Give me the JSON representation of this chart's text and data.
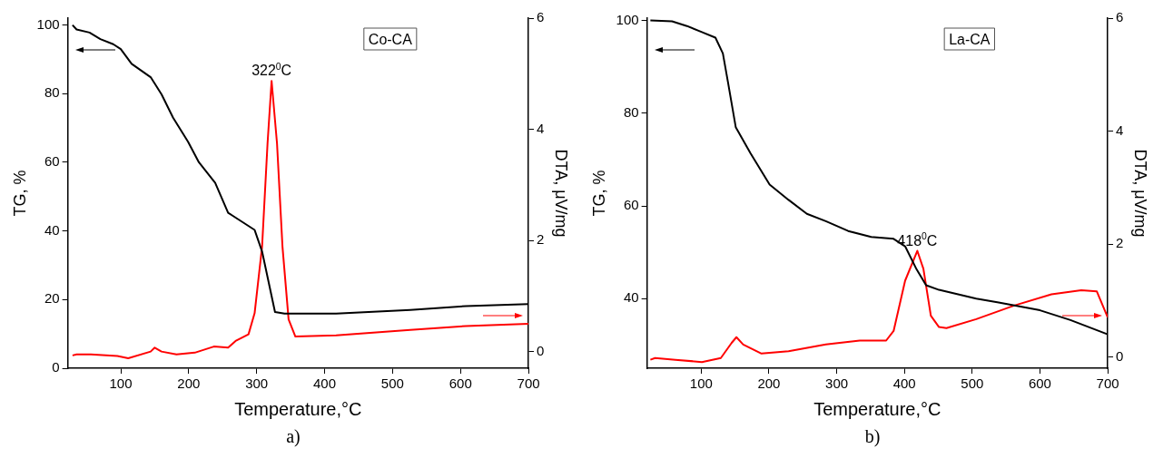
{
  "chart_data": [
    {
      "type": "line",
      "xlabel": "Temperature,°C",
      "ylabel": "TG, %",
      "y2label": "DTA, μV/mg",
      "xlim": [
        22,
        700
      ],
      "xticks": [
        100,
        200,
        300,
        400,
        500,
        600,
        700
      ],
      "ylim": [
        0,
        102
      ],
      "yticks": [
        0,
        20,
        40,
        60,
        80,
        100
      ],
      "y2lim": [
        -0.3,
        6
      ],
      "y2ticks": [
        0,
        2,
        4,
        6
      ],
      "grid": false,
      "legend": false,
      "marker": "none",
      "line_style": "solid",
      "annotations": [
        "Co-CA",
        "a)",
        "322$^{0}$C"
      ],
      "series": [
        {
          "color": "#000000",
          "x": [
            29,
            35,
            54,
            70,
            89,
            100,
            116,
            144,
            160,
            177,
            199,
            215,
            239,
            258,
            297,
            308,
            327,
            341,
            417,
            526,
            608,
            700
          ],
          "values": [
            100,
            98.7,
            97.8,
            95.9,
            94.4,
            93,
            88.7,
            84.8,
            79.8,
            73,
            66,
            60,
            54,
            45.3,
            40.3,
            34,
            16.4,
            15.9,
            15.9,
            17,
            18.1,
            18.7
          ]
        },
        {
          "color": "#ff0000",
          "axis": "y2",
          "x": [
            29,
            35,
            56,
            95,
            111,
            144,
            150,
            160,
            182,
            209,
            237,
            258,
            269,
            288,
            297,
            308,
            316,
            322,
            330,
            338,
            347,
            357,
            417,
            526,
            608,
            700
          ],
          "values": [
            -0.07,
            -0.05,
            -0.05,
            -0.08,
            -0.12,
            0,
            0.07,
            0,
            -0.05,
            -0.02,
            0.09,
            0.07,
            0.19,
            0.31,
            0.69,
            1.89,
            3.74,
            4.87,
            3.74,
            1.89,
            0.58,
            0.27,
            0.29,
            0.39,
            0.46,
            0.5
          ]
        }
      ]
    },
    {
      "type": "line",
      "xlabel": "Temperature,°C",
      "ylabel": "TG, %",
      "y2label": "DTA, μV/mg",
      "xlim": [
        20,
        700
      ],
      "xticks": [
        100,
        200,
        300,
        400,
        500,
        600,
        700
      ],
      "ylim": [
        25,
        100.5
      ],
      "yticks": [
        40,
        60,
        80,
        100
      ],
      "y2lim": [
        -0.2,
        6
      ],
      "y2ticks": [
        0,
        2,
        4,
        6
      ],
      "grid": false,
      "legend": false,
      "marker": "none",
      "line_style": "solid",
      "annotations": [
        "La-CA",
        "b)",
        "418$^{0}$C"
      ],
      "series": [
        {
          "color": "#000000",
          "x": [
            25,
            57,
            79,
            101,
            121,
            132,
            140,
            151,
            173,
            201,
            229,
            256,
            284,
            317,
            351,
            384,
            401,
            418,
            432,
            451,
            506,
            539,
            600,
            645,
            700
          ],
          "values": [
            100,
            99.8,
            98.8,
            97.5,
            96.3,
            92.9,
            86.3,
            77,
            71.3,
            64.6,
            61.3,
            58.3,
            56.7,
            54.6,
            53.3,
            52.9,
            51.3,
            46.3,
            42.9,
            41.9,
            40,
            39.2,
            37.5,
            35.4,
            32.3
          ]
        },
        {
          "color": "#ff0000",
          "axis": "y2",
          "x": [
            25,
            32,
            62,
            101,
            129,
            145,
            152,
            162,
            189,
            229,
            284,
            334,
            373,
            384,
            401,
            419,
            428,
            439,
            451,
            462,
            506,
            562,
            617,
            661,
            684,
            700
          ],
          "values": [
            -0.05,
            -0.02,
            -0.05,
            -0.09,
            -0.02,
            0.25,
            0.35,
            0.22,
            0.06,
            0.1,
            0.22,
            0.29,
            0.29,
            0.46,
            1.35,
            1.88,
            1.56,
            0.73,
            0.53,
            0.51,
            0.67,
            0.91,
            1.11,
            1.18,
            1.16,
            0.7
          ]
        }
      ]
    }
  ]
}
